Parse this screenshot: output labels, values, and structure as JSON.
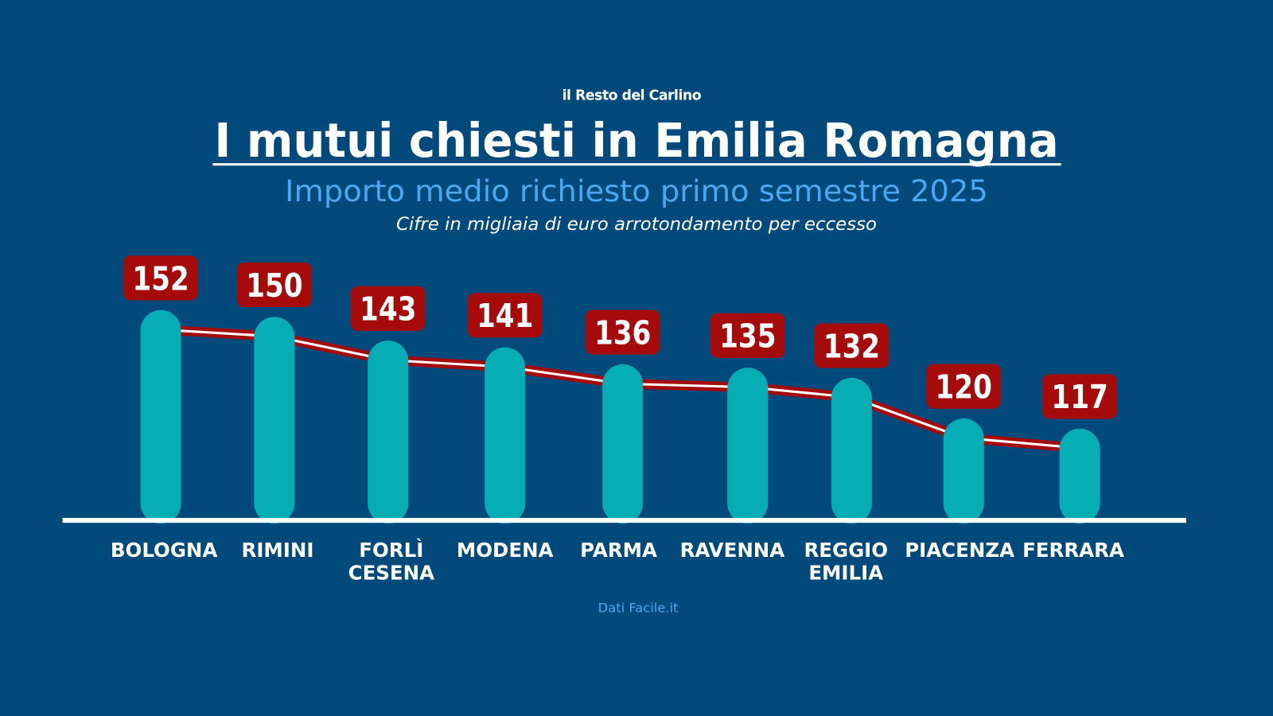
{
  "brand": "il Resto del Carlino",
  "title": "I mutui chiesti in Emilia Romagna",
  "subtitle": "Importo medio richiesto primo semestre 2025",
  "note": "Cifre in migliaia di euro arrotondamento per eccesso",
  "source": "Dati Facile.it",
  "colors": {
    "background": "#034a7c",
    "bar": "#06adb5",
    "label_box": "#a50b0b",
    "line": "#a50b0b",
    "line_inner": "#ffffff",
    "subtitle": "#4aa8f0"
  },
  "chart_data": {
    "type": "bar",
    "title": "I mutui chiesti in Emilia Romagna",
    "subtitle": "Importo medio richiesto primo semestre 2025",
    "categories": [
      "BOLOGNA",
      "RIMINI",
      "FORLÌ CESENA",
      "MODENA",
      "PARMA",
      "RAVENNA",
      "REGGIO EMILIA",
      "PIACENZA",
      "FERRARA"
    ],
    "category_lines": [
      [
        "BOLOGNA"
      ],
      [
        "RIMINI"
      ],
      [
        "FORLÌ",
        "CESENA"
      ],
      [
        "MODENA"
      ],
      [
        "PARMA"
      ],
      [
        "RAVENNA"
      ],
      [
        "REGGIO",
        "EMILIA"
      ],
      [
        "PIACENZA"
      ],
      [
        "FERRARA"
      ]
    ],
    "values": [
      152,
      150,
      143,
      141,
      136,
      135,
      132,
      120,
      117
    ],
    "data_labels": [
      "152",
      "150",
      "143",
      "141",
      "136",
      "135",
      "132",
      "120",
      "117"
    ],
    "overlay": "line connecting bar tops",
    "grid": false,
    "legend": "none"
  }
}
